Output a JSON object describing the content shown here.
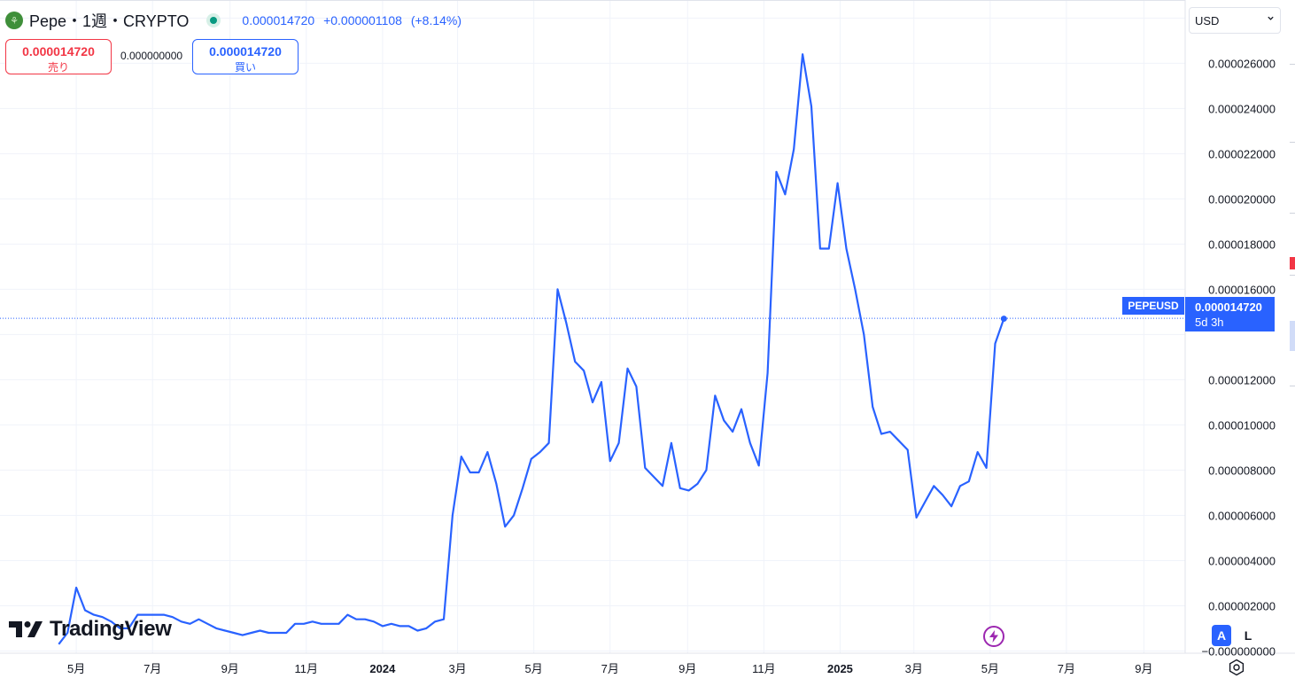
{
  "legend": {
    "coin_glyph": "⚘",
    "symbol_title": "Pepe・1週・CRYPTO",
    "price": "0.000014720",
    "change": "+0.000001108",
    "change_pct": "(+8.14%)"
  },
  "trade": {
    "sell_price": "0.000014720",
    "sell_label": "売り",
    "spread": "0.000000000",
    "buy_price": "0.000014720",
    "buy_label": "買い"
  },
  "currency_select": {
    "value": "USD"
  },
  "logo_text": "TradingView",
  "price_tag": {
    "symbol": "PEPEUSD",
    "price": "0.000014720",
    "countdown": "5d 3h"
  },
  "scale_buttons": {
    "auto": "A",
    "log": "L"
  },
  "icons": {
    "logo": "tradingview-logo-icon",
    "bolt": "lightning-icon",
    "settings": "gear-icon",
    "chevron": "chevron-down-icon",
    "live": "live-dot-icon"
  },
  "colors": {
    "line": "#2962ff",
    "sell": "#f23645",
    "buy": "#2962ff",
    "live": "#089981"
  },
  "chart_data": {
    "type": "line",
    "series": [
      {
        "values": [
          [
            "2023-04-17",
            3e-07
          ],
          [
            "2023-04-24",
            8e-07
          ],
          [
            "2023-05-01",
            2.8e-06
          ],
          [
            "2023-05-08",
            1.8e-06
          ],
          [
            "2023-05-15",
            1.6e-06
          ],
          [
            "2023-05-22",
            1.5e-06
          ],
          [
            "2023-05-29",
            1.3e-06
          ],
          [
            "2023-06-05",
            1e-06
          ],
          [
            "2023-06-12",
            1e-06
          ],
          [
            "2023-06-19",
            1.6e-06
          ],
          [
            "2023-06-26",
            1.6e-06
          ],
          [
            "2023-07-03",
            1.6e-06
          ],
          [
            "2023-07-10",
            1.6e-06
          ],
          [
            "2023-07-17",
            1.5e-06
          ],
          [
            "2023-07-24",
            1.3e-06
          ],
          [
            "2023-07-31",
            1.2e-06
          ],
          [
            "2023-08-07",
            1.4e-06
          ],
          [
            "2023-08-14",
            1.2e-06
          ],
          [
            "2023-08-21",
            1e-06
          ],
          [
            "2023-08-28",
            9e-07
          ],
          [
            "2023-09-04",
            8e-07
          ],
          [
            "2023-09-11",
            7e-07
          ],
          [
            "2023-09-18",
            8e-07
          ],
          [
            "2023-09-25",
            9e-07
          ],
          [
            "2023-10-02",
            8e-07
          ],
          [
            "2023-10-09",
            8e-07
          ],
          [
            "2023-10-16",
            8e-07
          ],
          [
            "2023-10-23",
            1.2e-06
          ],
          [
            "2023-10-30",
            1.2e-06
          ],
          [
            "2023-11-06",
            1.3e-06
          ],
          [
            "2023-11-13",
            1.2e-06
          ],
          [
            "2023-11-20",
            1.2e-06
          ],
          [
            "2023-11-27",
            1.2e-06
          ],
          [
            "2023-12-04",
            1.6e-06
          ],
          [
            "2023-12-11",
            1.4e-06
          ],
          [
            "2023-12-18",
            1.4e-06
          ],
          [
            "2023-12-25",
            1.3e-06
          ],
          [
            "2024-01-01",
            1.1e-06
          ],
          [
            "2024-01-08",
            1.2e-06
          ],
          [
            "2024-01-15",
            1.1e-06
          ],
          [
            "2024-01-22",
            1.1e-06
          ],
          [
            "2024-01-29",
            9e-07
          ],
          [
            "2024-02-05",
            1e-06
          ],
          [
            "2024-02-12",
            1.3e-06
          ],
          [
            "2024-02-19",
            1.4e-06
          ],
          [
            "2024-02-26",
            6e-06
          ],
          [
            "2024-03-04",
            8.6e-06
          ],
          [
            "2024-03-11",
            7.9e-06
          ],
          [
            "2024-03-18",
            7.9e-06
          ],
          [
            "2024-03-25",
            8.8e-06
          ],
          [
            "2024-04-01",
            7.4e-06
          ],
          [
            "2024-04-08",
            5.5e-06
          ],
          [
            "2024-04-15",
            6e-06
          ],
          [
            "2024-04-22",
            7.2e-06
          ],
          [
            "2024-04-29",
            8.5e-06
          ],
          [
            "2024-05-06",
            8.8e-06
          ],
          [
            "2024-05-13",
            9.2e-06
          ],
          [
            "2024-05-20",
            1.6e-05
          ],
          [
            "2024-05-27",
            1.45e-05
          ],
          [
            "2024-06-03",
            1.28e-05
          ],
          [
            "2024-06-10",
            1.24e-05
          ],
          [
            "2024-06-17",
            1.1e-05
          ],
          [
            "2024-06-24",
            1.19e-05
          ],
          [
            "2024-07-01",
            8.4e-06
          ],
          [
            "2024-07-08",
            9.2e-06
          ],
          [
            "2024-07-15",
            1.25e-05
          ],
          [
            "2024-07-22",
            1.17e-05
          ],
          [
            "2024-07-29",
            8.1e-06
          ],
          [
            "2024-08-05",
            7.7e-06
          ],
          [
            "2024-08-12",
            7.3e-06
          ],
          [
            "2024-08-19",
            9.2e-06
          ],
          [
            "2024-08-26",
            7.2e-06
          ],
          [
            "2024-09-02",
            7.1e-06
          ],
          [
            "2024-09-09",
            7.4e-06
          ],
          [
            "2024-09-16",
            8e-06
          ],
          [
            "2024-09-23",
            1.13e-05
          ],
          [
            "2024-09-30",
            1.02e-05
          ],
          [
            "2024-10-07",
            9.7e-06
          ],
          [
            "2024-10-14",
            1.07e-05
          ],
          [
            "2024-10-21",
            9.2e-06
          ],
          [
            "2024-10-28",
            8.2e-06
          ],
          [
            "2024-11-04",
            1.23e-05
          ],
          [
            "2024-11-11",
            2.12e-05
          ],
          [
            "2024-11-18",
            2.02e-05
          ],
          [
            "2024-11-25",
            2.22e-05
          ],
          [
            "2024-12-02",
            2.64e-05
          ],
          [
            "2024-12-09",
            2.41e-05
          ],
          [
            "2024-12-16",
            1.78e-05
          ],
          [
            "2024-12-23",
            1.78e-05
          ],
          [
            "2024-12-30",
            2.07e-05
          ],
          [
            "2025-01-06",
            1.78e-05
          ],
          [
            "2025-01-13",
            1.6e-05
          ],
          [
            "2025-01-20",
            1.4e-05
          ],
          [
            "2025-01-27",
            1.08e-05
          ],
          [
            "2025-02-03",
            9.6e-06
          ],
          [
            "2025-02-10",
            9.7e-06
          ],
          [
            "2025-02-17",
            9.3e-06
          ],
          [
            "2025-02-24",
            8.9e-06
          ],
          [
            "2025-03-03",
            5.9e-06
          ],
          [
            "2025-03-10",
            6.6e-06
          ],
          [
            "2025-03-17",
            7.3e-06
          ],
          [
            "2025-03-24",
            6.9e-06
          ],
          [
            "2025-03-31",
            6.4e-06
          ],
          [
            "2025-04-07",
            7.3e-06
          ],
          [
            "2025-04-14",
            7.5e-06
          ],
          [
            "2025-04-21",
            8.8e-06
          ],
          [
            "2025-04-28",
            8.1e-06
          ],
          [
            "2025-05-05",
            1.36e-05
          ],
          [
            "2025-05-12",
            1.47e-05
          ]
        ]
      }
    ],
    "x_ticks": [
      {
        "date": "2023-05-01",
        "label": "5月",
        "bold": false
      },
      {
        "date": "2023-07-01",
        "label": "7月",
        "bold": false
      },
      {
        "date": "2023-09-01",
        "label": "9月",
        "bold": false
      },
      {
        "date": "2023-11-01",
        "label": "11月",
        "bold": false
      },
      {
        "date": "2024-01-01",
        "label": "2024",
        "bold": true
      },
      {
        "date": "2024-03-01",
        "label": "3月",
        "bold": false
      },
      {
        "date": "2024-05-01",
        "label": "5月",
        "bold": false
      },
      {
        "date": "2024-07-01",
        "label": "7月",
        "bold": false
      },
      {
        "date": "2024-09-01",
        "label": "9月",
        "bold": false
      },
      {
        "date": "2024-11-01",
        "label": "11月",
        "bold": false
      },
      {
        "date": "2025-01-01",
        "label": "2025",
        "bold": true
      },
      {
        "date": "2025-03-01",
        "label": "3月",
        "bold": false
      },
      {
        "date": "2025-05-01",
        "label": "5月",
        "bold": false
      },
      {
        "date": "2025-07-01",
        "label": "7月",
        "bold": false
      },
      {
        "date": "2025-09-01",
        "label": "9月",
        "bold": false
      }
    ],
    "y_ticks": [
      {
        "value": 2.6e-05,
        "label": "0.000026000"
      },
      {
        "value": 2.4e-05,
        "label": "0.000024000"
      },
      {
        "value": 2.2e-05,
        "label": "0.000022000"
      },
      {
        "value": 2e-05,
        "label": "0.000020000"
      },
      {
        "value": 1.8e-05,
        "label": "0.000018000"
      },
      {
        "value": 1.6e-05,
        "label": "0.000016000"
      },
      {
        "value": 1.2e-05,
        "label": "0.000012000"
      },
      {
        "value": 1e-05,
        "label": "0.000010000"
      },
      {
        "value": 8e-06,
        "label": "0.000008000"
      },
      {
        "value": 6e-06,
        "label": "0.000006000"
      },
      {
        "value": 4e-06,
        "label": "0.000004000"
      },
      {
        "value": 2e-06,
        "label": "0.000002000"
      },
      {
        "value": 0,
        "label": "−0.000000000"
      }
    ],
    "x_range": [
      "2023-03-01",
      "2025-10-04"
    ],
    "ylim": [
      -1e-07,
      2.88e-05
    ],
    "last_price": 1.472e-05,
    "grid": true
  }
}
